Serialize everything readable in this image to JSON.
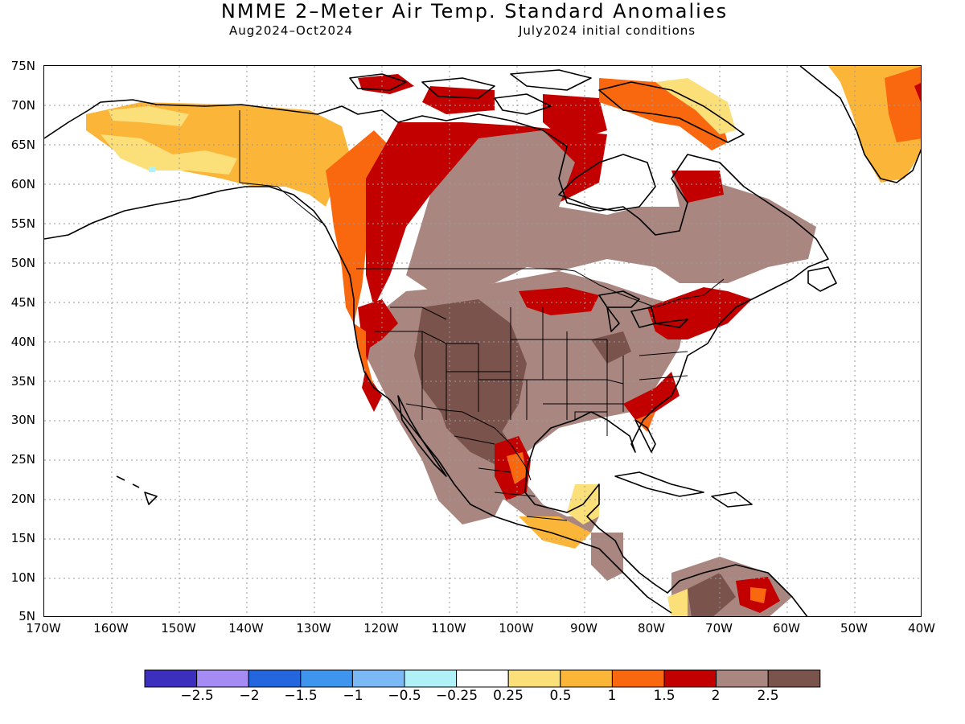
{
  "title": "NMME 2–Meter Air Temp. Standard Anomalies",
  "subtitle_left": "Aug2024–Oct2024",
  "subtitle_right": "July2024 initial conditions",
  "lat_ticks": [
    "75N",
    "70N",
    "65N",
    "60N",
    "55N",
    "50N",
    "45N",
    "40N",
    "35N",
    "30N",
    "25N",
    "20N",
    "15N",
    "10N",
    "5N"
  ],
  "lon_ticks": [
    "170W",
    "160W",
    "150W",
    "140W",
    "130W",
    "120W",
    "110W",
    "100W",
    "90W",
    "80W",
    "70W",
    "60W",
    "50W",
    "40W"
  ],
  "colorbar": {
    "colors": [
      "#3d2fbd",
      "#a48cf4",
      "#2466dd",
      "#3f95ee",
      "#7ab9f6",
      "#b0f0f7",
      "#ffffff",
      "#fbe07a",
      "#fbb63a",
      "#f9670e",
      "#c20000",
      "#a98680",
      "#7a534c"
    ],
    "labels": [
      "−2.5",
      "−2",
      "−1.5",
      "−1",
      "−0.5",
      "−0.25",
      "0.25",
      "0.5",
      "1",
      "1.5",
      "2",
      "2.5"
    ]
  },
  "map_colors": {
    "land_outline": "#000000",
    "grid": "#9a9a9a",
    "anom_0_5": "#fbe07a",
    "anom_1": "#fbb63a",
    "anom_1_5": "#f9670e",
    "anom_2": "#c20000",
    "anom_2_5": "#a98680",
    "anom_3": "#7a534c",
    "anom_neg_0_5": "#b0f0f7"
  }
}
